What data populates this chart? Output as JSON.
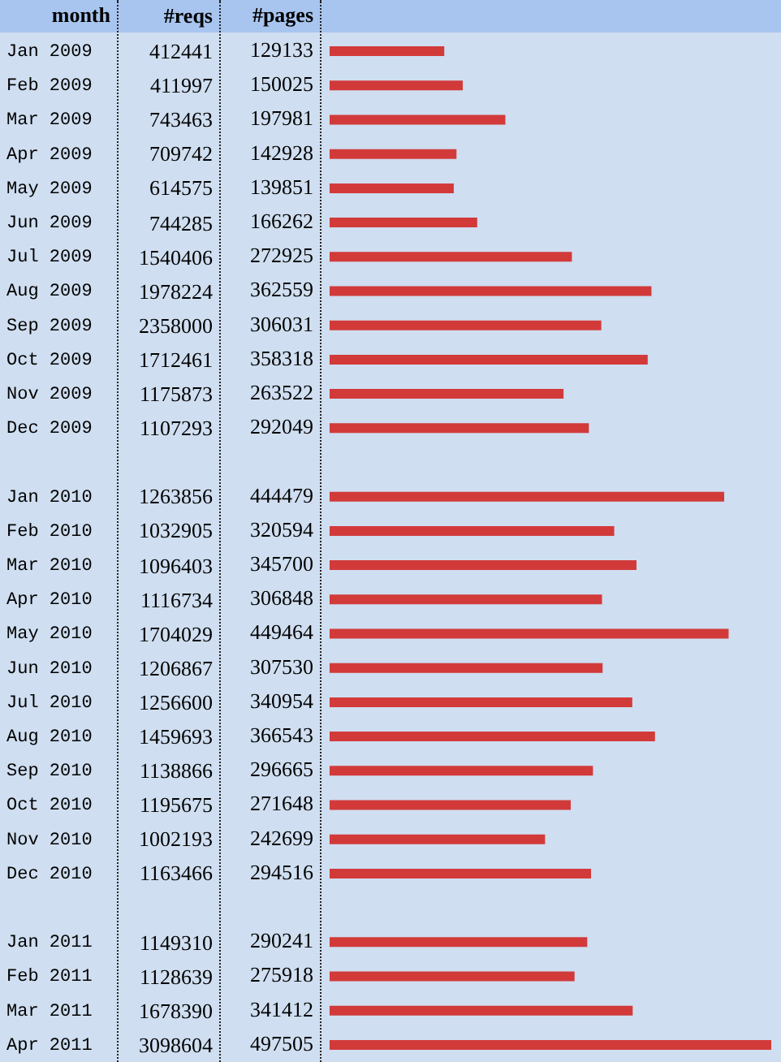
{
  "chart_data": [
    {
      "type": "other",
      "data_labels": true,
      "series": [
        {
          "name": "#reqs",
          "values": [
            412441,
            411997,
            743463,
            709742,
            614575,
            744285,
            1540406,
            1978224,
            2358000,
            1712461,
            1175873,
            1107293,
            null,
            1263856,
            1032905,
            1096403,
            1116734,
            1704029,
            1206867,
            1256600,
            1459693,
            1138866,
            1195675,
            1002193,
            1163466,
            null,
            1149310,
            1128639,
            1678390,
            3098604
          ]
        }
      ]
    },
    {
      "type": "bar",
      "orientation": "horizontal",
      "ylabel": "month",
      "tick_labels": "y",
      "data_labels": true,
      "legend": false,
      "xlim": [
        0,
        497505
      ],
      "categories": [
        "Jan 2009",
        "Feb 2009",
        "Mar 2009",
        "Apr 2009",
        "May 2009",
        "Jun 2009",
        "Jul 2009",
        "Aug 2009",
        "Sep 2009",
        "Oct 2009",
        "Nov 2009",
        "Dec 2009",
        null,
        "Jan 2010",
        "Feb 2010",
        "Mar 2010",
        "Apr 2010",
        "May 2010",
        "Jun 2010",
        "Jul 2010",
        "Aug 2010",
        "Sep 2010",
        "Oct 2010",
        "Nov 2010",
        "Dec 2010",
        null,
        "Jan 2011",
        "Feb 2011",
        "Mar 2011",
        "Apr 2011"
      ],
      "series": [
        {
          "name": "#pages",
          "color": "#d23a3a",
          "values": [
            129133,
            150025,
            197981,
            142928,
            139851,
            166262,
            272925,
            362559,
            306031,
            358318,
            263522,
            292049,
            null,
            444479,
            320594,
            345700,
            306848,
            449464,
            307530,
            340954,
            366543,
            296665,
            271648,
            242699,
            294516,
            null,
            290241,
            275918,
            341412,
            497505
          ]
        }
      ]
    }
  ]
}
